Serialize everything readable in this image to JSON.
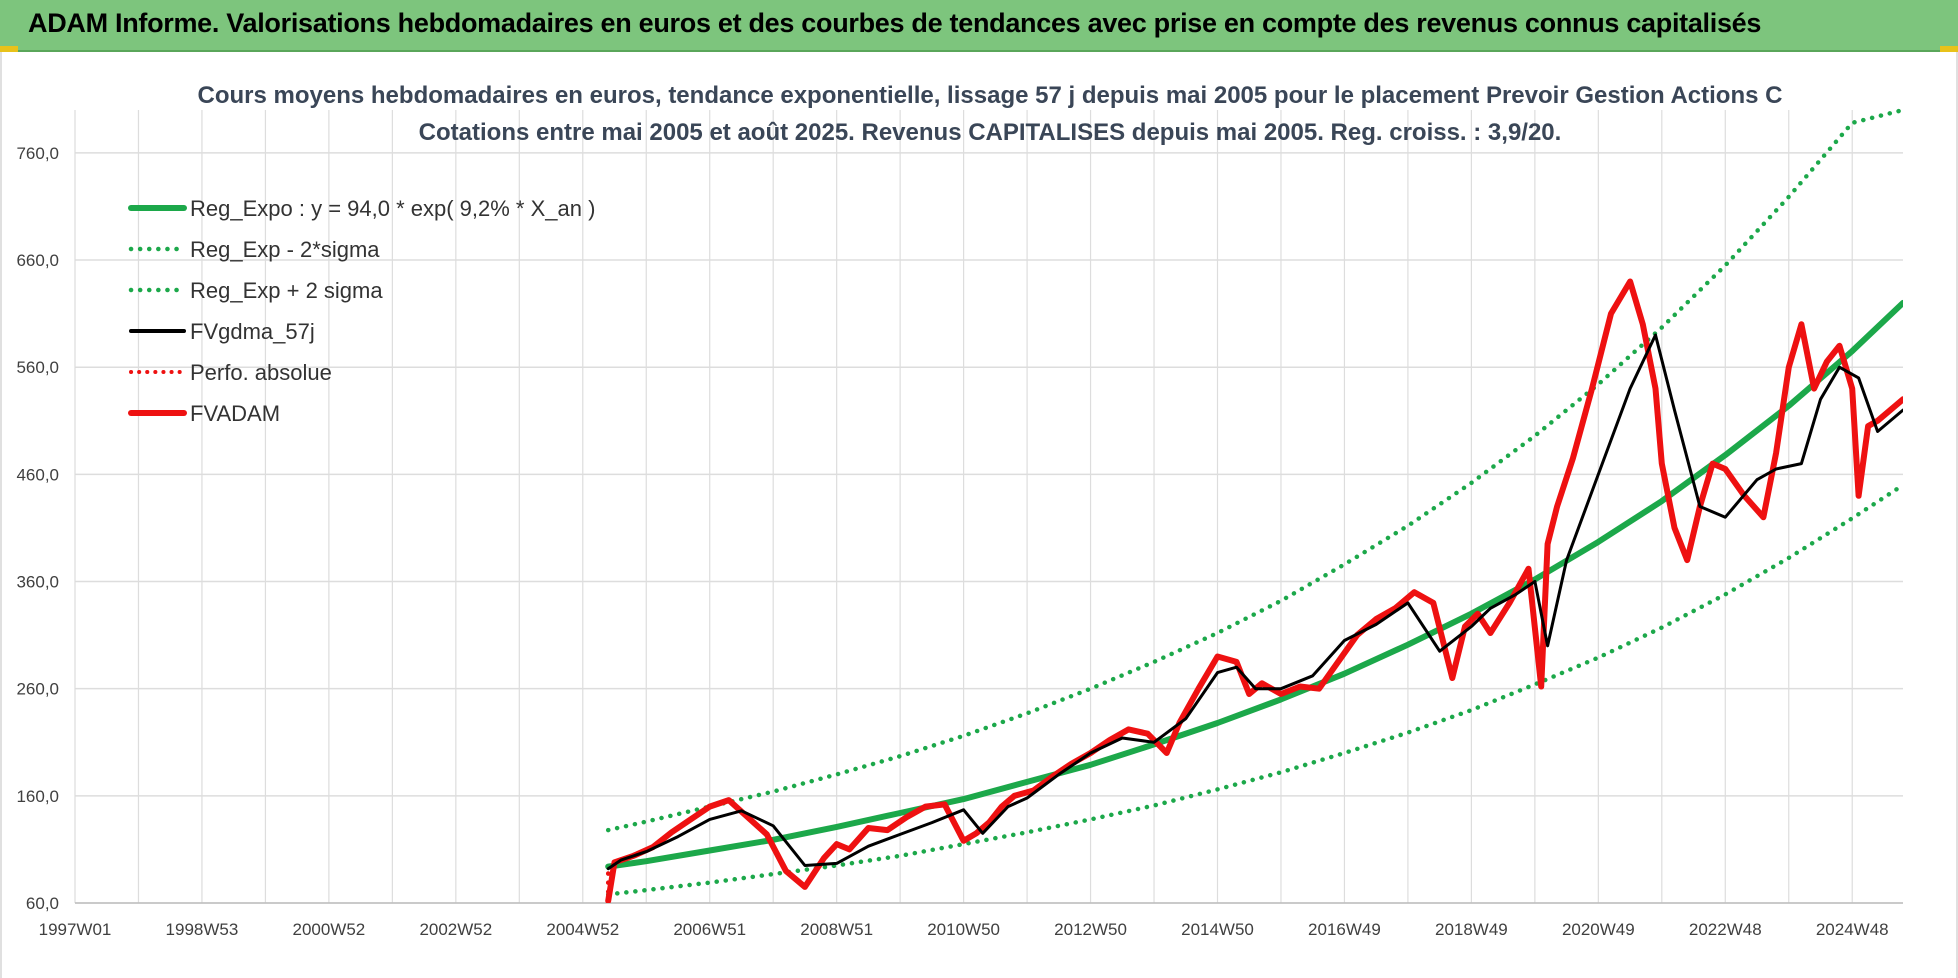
{
  "header": {
    "banner_text": "ADAM Informe. Valorisations hebdomadaires en euros et des courbes de tendances avec prise en compte des revenus connus capitalisés"
  },
  "colors": {
    "banner_bg": "#7dc57d",
    "regression": "#1ca84a",
    "smoothed": "#000000",
    "fund": "#ee1111",
    "grid": "#dddddd"
  },
  "chart_data": {
    "type": "line",
    "title": "Cours moyens hebdomadaires en euros, tendance exponentielle, lissage 57 j depuis mai 2005 pour le placement Prevoir Gestion Actions C",
    "subtitle": "Cotations entre mai 2005 et août 2025. Revenus CAPITALISES depuis mai 2005. Reg. croiss. : 3,9/20.",
    "xlabel": "",
    "ylabel": "",
    "ylim": [
      60,
      800
    ],
    "xlim": [
      1997.0,
      2025.8
    ],
    "grid": true,
    "legend_position": "top-left",
    "y_ticks": [
      "760,0",
      "660,0",
      "560,0",
      "460,0",
      "360,0",
      "260,0",
      "160,0",
      "60,0"
    ],
    "y_tick_values": [
      760,
      660,
      560,
      460,
      360,
      260,
      160,
      60
    ],
    "x_ticks": [
      "1997W01",
      "1998W53",
      "2000W52",
      "2002W52",
      "2004W52",
      "2006W51",
      "2008W51",
      "2010W50",
      "2012W50",
      "2014W50",
      "2016W49",
      "2018W49",
      "2020W49",
      "2022W48",
      "2024W48"
    ],
    "x_tick_values": [
      1997.0,
      1999.0,
      2001.0,
      2003.0,
      2005.0,
      2007.0,
      2009.0,
      2011.0,
      2013.0,
      2015.0,
      2017.0,
      2019.0,
      2021.0,
      2023.0,
      2025.0
    ],
    "series": [
      {
        "name": "Reg_Expo : y = 94,0 * exp( 9,2% *  X_an )",
        "style": "solid-thick",
        "color": "#1ca84a",
        "x": [
          2005.4,
          2006,
          2007,
          2008,
          2009,
          2010,
          2011,
          2012,
          2013,
          2014,
          2015,
          2016,
          2017,
          2018,
          2019,
          2020,
          2021,
          2022,
          2023,
          2024,
          2025,
          2025.8
        ],
        "y": [
          94,
          99,
          109,
          119,
          131,
          144,
          157,
          173,
          189,
          208,
          228,
          250,
          274,
          301,
          330,
          362,
          397,
          435,
          478,
          524,
          575,
          620
        ]
      },
      {
        "name": "Reg_Exp - 2*sigma",
        "style": "dotted",
        "color": "#1ca84a",
        "x": [
          2005.4,
          2006,
          2007,
          2008,
          2009,
          2010,
          2011,
          2012,
          2013,
          2014,
          2015,
          2016,
          2017,
          2018,
          2019,
          2020,
          2021,
          2022,
          2023,
          2024,
          2025,
          2025.8
        ],
        "y": [
          68,
          72,
          79,
          87,
          95,
          104,
          115,
          126,
          138,
          151,
          166,
          182,
          200,
          219,
          240,
          264,
          289,
          317,
          348,
          382,
          419,
          450
        ]
      },
      {
        "name": "Reg_Exp + 2 sigma",
        "style": "dotted",
        "color": "#1ca84a",
        "x": [
          2005.4,
          2006,
          2007,
          2008,
          2009,
          2010,
          2011,
          2012,
          2013,
          2014,
          2015,
          2016,
          2017,
          2018,
          2019,
          2020,
          2021,
          2022,
          2023,
          2024,
          2025,
          2025.8
        ],
        "y": [
          128,
          136,
          150,
          164,
          180,
          197,
          216,
          237,
          260,
          285,
          312,
          342,
          376,
          412,
          452,
          496,
          544,
          597,
          655,
          719,
          788,
          800
        ]
      },
      {
        "name": "FVgdma_57j",
        "style": "solid",
        "color": "#000000",
        "x": [
          2005.4,
          2005.6,
          2006,
          2006.5,
          2007,
          2007.5,
          2008,
          2008.5,
          2009,
          2009.5,
          2010,
          2010.5,
          2011,
          2011.3,
          2011.7,
          2012,
          2012.5,
          2013,
          2013.5,
          2014,
          2014.5,
          2015,
          2015.3,
          2015.6,
          2016,
          2016.5,
          2017,
          2017.5,
          2018,
          2018.5,
          2019,
          2019.3,
          2019.7,
          2020,
          2020.2,
          2020.5,
          2021,
          2021.5,
          2021.9,
          2022.2,
          2022.6,
          2023,
          2023.5,
          2023.8,
          2024.2,
          2024.5,
          2024.8,
          2025.1,
          2025.4,
          2025.8
        ],
        "y": [
          92,
          100,
          108,
          122,
          138,
          146,
          132,
          95,
          97,
          113,
          124,
          135,
          147,
          125,
          150,
          158,
          180,
          200,
          214,
          210,
          232,
          275,
          280,
          260,
          260,
          272,
          305,
          320,
          340,
          295,
          318,
          335,
          348,
          360,
          300,
          380,
          460,
          540,
          590,
          520,
          430,
          420,
          455,
          465,
          470,
          530,
          560,
          550,
          500,
          520
        ]
      },
      {
        "name": "Perfo. absolue",
        "style": "dotted",
        "color": "#ee1111",
        "x": [
          2005.4,
          2005.4
        ],
        "y": [
          62,
          92
        ]
      },
      {
        "name": "FVADAM",
        "style": "solid-thick",
        "color": "#ee1111",
        "x": [
          2005.4,
          2005.5,
          2005.8,
          2006.1,
          2006.4,
          2006.7,
          2007.0,
          2007.3,
          2007.6,
          2007.9,
          2008.2,
          2008.5,
          2008.8,
          2009.0,
          2009.2,
          2009.5,
          2009.8,
          2010.1,
          2010.4,
          2010.7,
          2011.0,
          2011.2,
          2011.4,
          2011.6,
          2011.8,
          2012.1,
          2012.4,
          2012.7,
          2013.0,
          2013.3,
          2013.6,
          2013.9,
          2014.2,
          2014.4,
          2014.7,
          2015.0,
          2015.3,
          2015.5,
          2015.7,
          2016.0,
          2016.3,
          2016.6,
          2016.9,
          2017.2,
          2017.5,
          2017.8,
          2018.1,
          2018.4,
          2018.7,
          2018.9,
          2019.1,
          2019.3,
          2019.6,
          2019.9,
          2020.1,
          2020.2,
          2020.35,
          2020.6,
          2020.9,
          2021.2,
          2021.5,
          2021.7,
          2021.9,
          2022.0,
          2022.2,
          2022.4,
          2022.6,
          2022.8,
          2023.0,
          2023.3,
          2023.6,
          2023.8,
          2024.0,
          2024.2,
          2024.4,
          2024.6,
          2024.8,
          2025.0,
          2025.1,
          2025.25,
          2025.4,
          2025.6,
          2025.8
        ],
        "y": [
          62,
          98,
          104,
          112,
          126,
          138,
          150,
          156,
          140,
          124,
          90,
          75,
          102,
          115,
          110,
          130,
          128,
          140,
          150,
          152,
          118,
          125,
          135,
          150,
          160,
          165,
          178,
          190,
          200,
          212,
          222,
          218,
          200,
          228,
          260,
          290,
          285,
          255,
          265,
          255,
          262,
          260,
          285,
          310,
          325,
          335,
          350,
          340,
          270,
          318,
          330,
          312,
          340,
          372,
          262,
          395,
          430,
          475,
          540,
          610,
          640,
          600,
          540,
          470,
          410,
          380,
          430,
          470,
          465,
          440,
          420,
          480,
          560,
          600,
          540,
          565,
          580,
          540,
          440,
          505,
          510,
          520,
          530
        ]
      }
    ]
  },
  "legend": [
    {
      "label": "Reg_Expo : y = 94,0 * exp( 9,2% *  X_an )",
      "icon": "solid-thick-green"
    },
    {
      "label": "Reg_Exp - 2*sigma",
      "icon": "dotted-green"
    },
    {
      "label": "Reg_Exp + 2 sigma",
      "icon": "dotted-green"
    },
    {
      "label": "FVgdma_57j",
      "icon": "solid-black"
    },
    {
      "label": "Perfo. absolue",
      "icon": "dotted-red"
    },
    {
      "label": "FVADAM",
      "icon": "solid-thick-red"
    }
  ]
}
